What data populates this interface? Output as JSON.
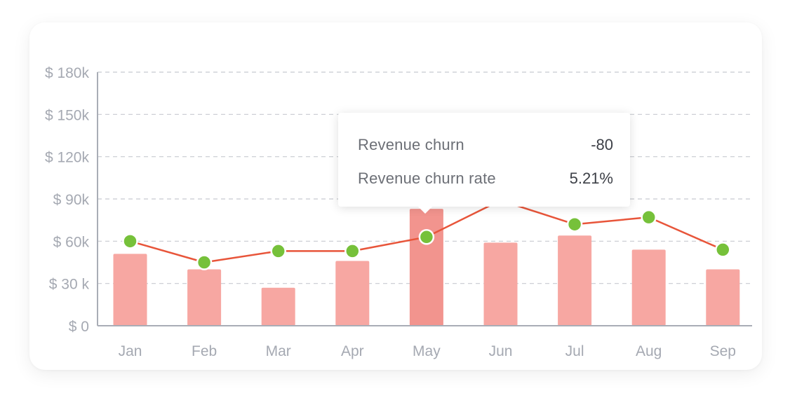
{
  "chart_data": {
    "type": "bar",
    "categories": [
      "Jan",
      "Feb",
      "Mar",
      "Apr",
      "May",
      "Jun",
      "Jul",
      "Aug",
      "Sep"
    ],
    "series": [
      {
        "type": "bar",
        "values": [
          51,
          40,
          27,
          46,
          83,
          59,
          64,
          54,
          40
        ]
      },
      {
        "type": "line",
        "values": [
          60,
          45,
          53,
          53,
          63,
          89,
          72,
          77,
          54
        ]
      }
    ],
    "yticks": [
      0,
      30,
      60,
      90,
      120,
      150,
      180
    ],
    "ytick_labels": [
      "$ 0",
      "$ 30 k",
      "$ 60k",
      "$ 90k",
      "$ 120k",
      "$ 150k",
      "$ 180k"
    ],
    "ylim": [
      0,
      180
    ],
    "grid": true,
    "colors": {
      "bar": "#f7a7a2",
      "bar_active": "#f2948e",
      "line": "#e8553a",
      "point": "#76c13a",
      "axis": "#a9adb6",
      "grid": "#c7cad0"
    }
  },
  "tooltip": {
    "rows": [
      {
        "label": "Revenue churn",
        "value": "-80"
      },
      {
        "label": "Revenue churn rate",
        "value": "5.21%"
      }
    ]
  }
}
